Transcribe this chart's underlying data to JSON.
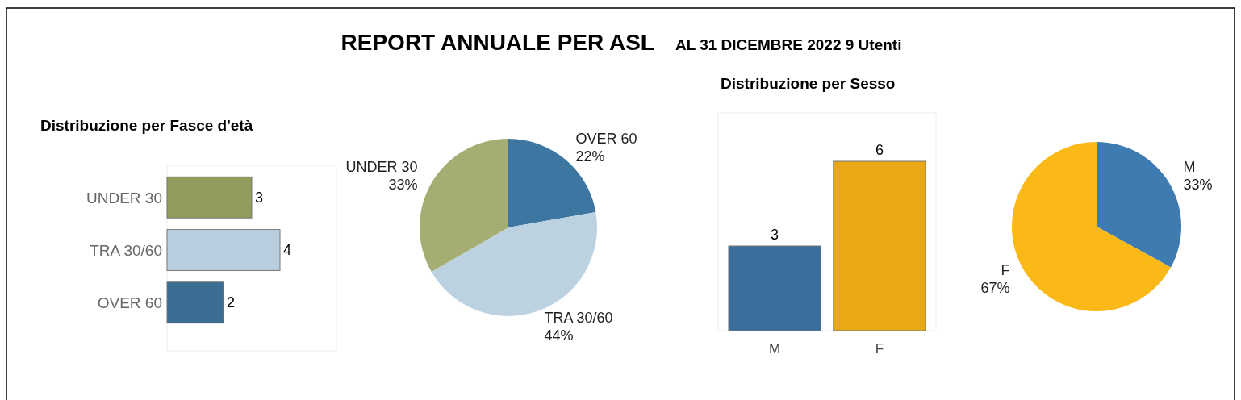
{
  "chart_data": [
    {
      "type": "other",
      "title": "REPORT ANNUALE PER ASL",
      "subtitle": "AL 31 DICEMBRE 2022 9 Utenti"
    },
    {
      "type": "bar",
      "orientation": "horizontal",
      "title": "Distribuzione per Fasce d'età",
      "categories": [
        "UNDER 30",
        "TRA 30/60",
        "OVER 60"
      ],
      "values": [
        3,
        4,
        2
      ],
      "colors": [
        "#8f9c5e",
        "#b9cfe0",
        "#3b6d93"
      ],
      "data_labels": true
    },
    {
      "type": "pie",
      "categories": [
        "OVER 60",
        "TRA 30/60",
        "UNDER 30"
      ],
      "values": [
        22,
        44,
        33
      ],
      "value_labels": [
        "22%",
        "44%",
        "33%"
      ],
      "colors": [
        "#3d76a0",
        "#bcd2e0",
        "#a5ad72"
      ]
    },
    {
      "type": "bar",
      "title": "Distribuzione per Sesso",
      "categories": [
        "M",
        "F"
      ],
      "values": [
        3,
        6
      ],
      "colors": [
        "#3a6f9c",
        "#e9a816"
      ],
      "data_labels": true
    },
    {
      "type": "pie",
      "categories": [
        "M",
        "F"
      ],
      "values": [
        33,
        67
      ],
      "value_labels": [
        "33%",
        "67%"
      ],
      "colors": [
        "#3d7bb0",
        "#fbb917"
      ]
    }
  ]
}
